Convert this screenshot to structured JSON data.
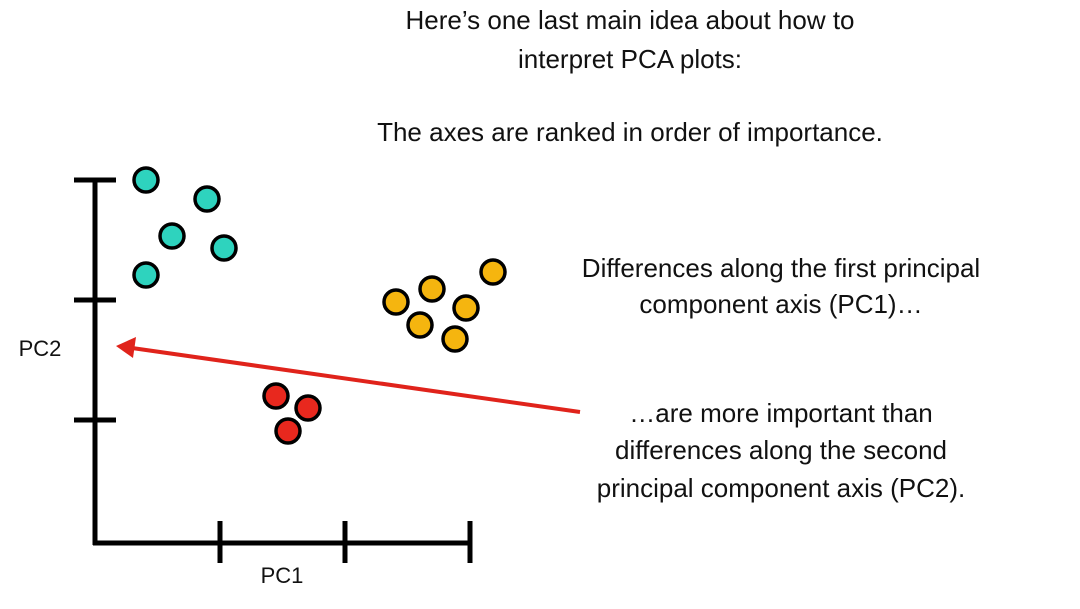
{
  "header": {
    "lines": [
      "Here’s one last main idea about how to",
      "interpret PCA plots:"
    ],
    "subtitle": "The axes are ranked in order of importance."
  },
  "plot": {
    "y_axis_label": "PC2",
    "x_axis_label": "PC1"
  },
  "notes": {
    "first": [
      "Differences along the first principal",
      "component axis (PC1)…"
    ],
    "second": [
      "…are more important than",
      "differences along the second",
      "principal component axis (PC2)."
    ]
  }
}
